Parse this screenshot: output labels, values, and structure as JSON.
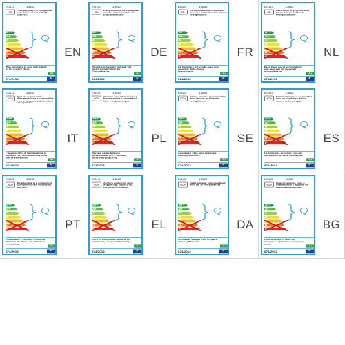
{
  "brand": "EGLO",
  "model": "13552",
  "regulation": "874/2012",
  "badge": "A+",
  "classes": [
    {
      "letter": "A++",
      "color": "#1f9a3a"
    },
    {
      "letter": "A+",
      "color": "#57b848"
    },
    {
      "letter": "A",
      "color": "#a4cf3c"
    },
    {
      "letter": "B",
      "color": "#f0e51b"
    },
    {
      "letter": "C",
      "color": "#f7b91b"
    },
    {
      "letter": "D",
      "color": "#ee7a1c"
    },
    {
      "letter": "E",
      "color": "#e3261f"
    }
  ],
  "labels": [
    {
      "lang": "EN",
      "top": "This luminaire is compatible with bulbs of the energy classes:",
      "bottom": "This luminaire is sold with a bulb of the energy class:"
    },
    {
      "lang": "DE",
      "top": "Diese Leuchte ist kompatibel mit den Leuchtmitteln der Energieklassen:",
      "bottom": "Diese Leuchte wird verkauft mit einem Leuchtmittel der Energieklasse:"
    },
    {
      "lang": "FR",
      "top": "Ce luminaire est compatible avec les ampoules des classes énergétiques:",
      "bottom": "Ce luminaire est vendu avec une ampoule de la classe énergétique:"
    },
    {
      "lang": "NL",
      "top": "Deze lamp is geschikt voor peren van de volgende energieklassen:",
      "bottom": "Deze lamp wordt verkocht met een peer van de volgende energieklasse:"
    },
    {
      "lang": "IT",
      "top": "Questo apparecchio d'illuminazione è compatibile con le lampadine delle classi energetiche:",
      "bottom": "L'apparecchio d' illuminazione è venduto con una lampadina della classe energetica:"
    },
    {
      "lang": "PL",
      "top": "Oprawa oświetleniowa jest kompatybilna z żarówkami klas energetycznych:",
      "bottom": "Oprawa oświetleniowa sprzedawana jest z żarówką klasy energetycznej:"
    },
    {
      "lang": "SE",
      "top": "Denna armatur är kompatibel med lampor av följande energiklasser:",
      "bottom": "Armaturen säljs med en lampa av energiklassen:"
    },
    {
      "lang": "ES",
      "top": "Esta luminaria es compatible con las bombillas de las clases de la energía:",
      "bottom": "La luminaria se vende con una lámpara de la clase de energía:"
    },
    {
      "lang": "PT",
      "top": "Esta luminária é compatível com bulbos das classes de energia:",
      "bottom": "A luminária é vendido com uma lâmpada da classe de eficiência energética:"
    },
    {
      "lang": "EL",
      "top": "Αυτό το φωτιστικό είναι συμβατό με λάμπες της ενεργειακής κλάσης:",
      "bottom": "Αυτό το φωτιστικό πωλείται με λάμπα της ενεργειακής κλάσης:"
    },
    {
      "lang": "DA",
      "top": "Dette armatur er kompatibelt med lag af energiklasser:",
      "bottom": "Armaturet sælges med en pære af energiklassen:"
    },
    {
      "lang": "BG",
      "top": "Осветителното тяло е съвместимо с крушки от енергийни класове:",
      "bottom": "Осветителното тяло се продава с крушка от енергиен клас:"
    }
  ]
}
